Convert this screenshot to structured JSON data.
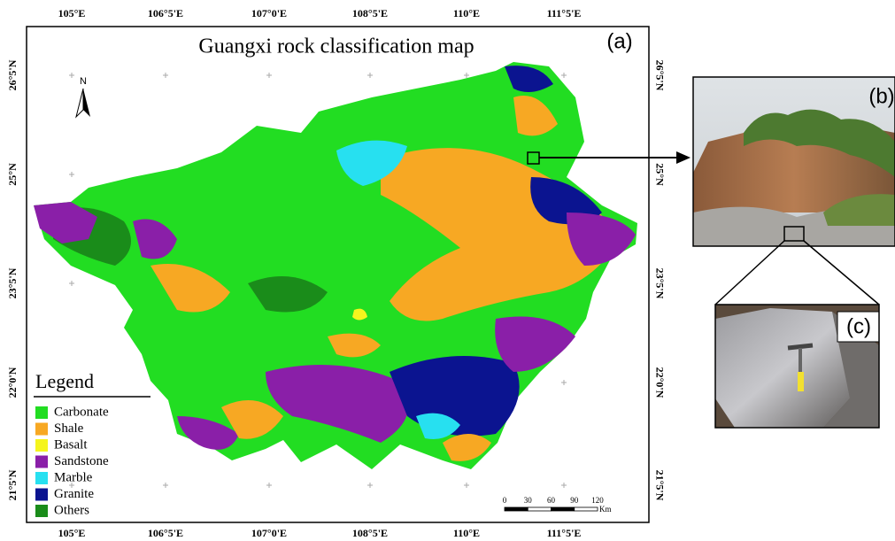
{
  "map": {
    "title": "Guangxi rock classification map",
    "panel_label": "(a)",
    "north_label": "N",
    "longitude_labels_top": [
      "105°E",
      "106°5'E",
      "107°0'E",
      "108°5'E",
      "110°E",
      "111°5'E"
    ],
    "longitude_labels_bottom": [
      "105°E",
      "106°5'E",
      "107°0'E",
      "108°5'E",
      "110°E",
      "111°5'E"
    ],
    "latitude_labels_left": [
      "26°5'N",
      "25°N",
      "23°5'N",
      "22°0'N",
      "21°5'N"
    ],
    "latitude_labels_right": [
      "26°5'N",
      "25°N",
      "23°5'N",
      "22°0'N",
      "21°5'N"
    ],
    "legend": {
      "title": "Legend",
      "items": [
        {
          "label": "Carbonate",
          "color": "#22dd22"
        },
        {
          "label": "Shale",
          "color": "#f7a823"
        },
        {
          "label": "Basalt",
          "color": "#f5f51e"
        },
        {
          "label": "Sandstone",
          "color": "#8a1fa8"
        },
        {
          "label": "Marble",
          "color": "#27e0f0"
        },
        {
          "label": "Granite",
          "color": "#0b1490"
        },
        {
          "label": "Others",
          "color": "#1a8c1a"
        }
      ]
    },
    "scale_bar": {
      "ticks": [
        0,
        30,
        60,
        90,
        120
      ],
      "unit": "Km"
    }
  },
  "photos": [
    {
      "label": "(b)"
    },
    {
      "label": "(c)"
    }
  ]
}
